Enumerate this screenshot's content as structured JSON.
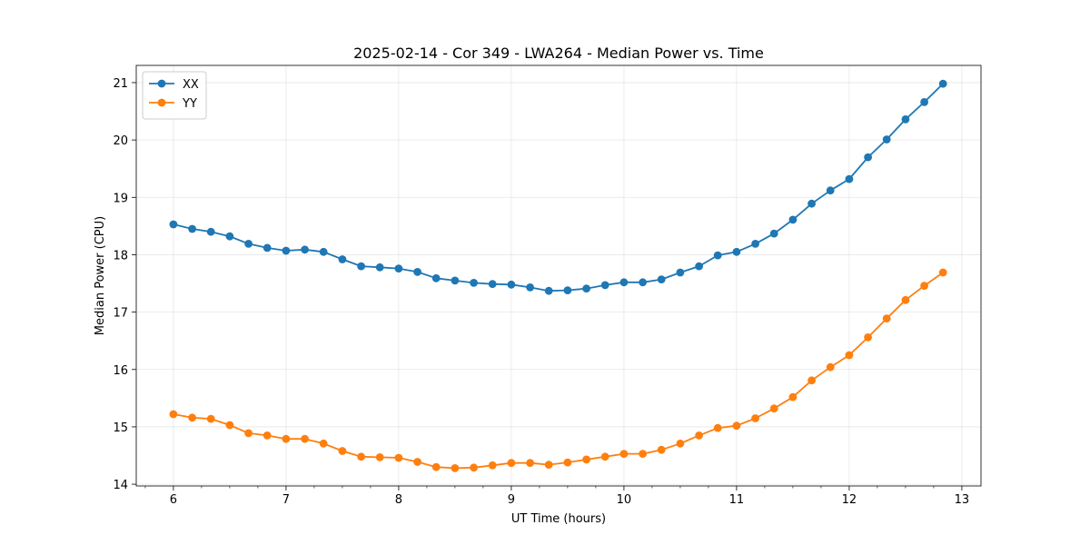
{
  "chart_data": {
    "type": "line",
    "title": "2025-02-14 - Cor 349 - LWA264 - Median Power vs. Time",
    "xlabel": "UT Time (hours)",
    "ylabel": "Median Power (CPU)",
    "xlim": [
      5.67,
      13.17
    ],
    "ylim": [
      13.97,
      21.3
    ],
    "xticks": [
      6,
      7,
      8,
      9,
      10,
      11,
      12,
      13
    ],
    "yticks": [
      14,
      15,
      16,
      17,
      18,
      19,
      20,
      21
    ],
    "grid": true,
    "legend_position": "top-left",
    "x": [
      6.0,
      6.167,
      6.333,
      6.5,
      6.667,
      6.833,
      7.0,
      7.167,
      7.333,
      7.5,
      7.667,
      7.833,
      8.0,
      8.167,
      8.333,
      8.5,
      8.667,
      8.833,
      9.0,
      9.167,
      9.333,
      9.5,
      9.667,
      9.833,
      10.0,
      10.167,
      10.333,
      10.5,
      10.667,
      10.833,
      11.0,
      11.167,
      11.333,
      11.5,
      11.667,
      11.833,
      12.0,
      12.167,
      12.333,
      12.5,
      12.667,
      12.833
    ],
    "series": [
      {
        "name": "XX",
        "color": "#1f77b4",
        "values": [
          18.53,
          18.45,
          18.4,
          18.32,
          18.19,
          18.12,
          18.07,
          18.09,
          18.05,
          17.92,
          17.8,
          17.78,
          17.76,
          17.7,
          17.59,
          17.55,
          17.51,
          17.49,
          17.48,
          17.43,
          17.37,
          17.38,
          17.41,
          17.47,
          17.52,
          17.52,
          17.57,
          17.69,
          17.8,
          17.99,
          18.05,
          18.19,
          18.37,
          18.61,
          18.89,
          19.12,
          19.32,
          19.7,
          20.01,
          20.36,
          20.66,
          20.98
        ]
      },
      {
        "name": "YY",
        "color": "#ff7f0e",
        "values": [
          15.22,
          15.16,
          15.14,
          15.03,
          14.89,
          14.85,
          14.79,
          14.79,
          14.71,
          14.58,
          14.48,
          14.47,
          14.46,
          14.39,
          14.3,
          14.28,
          14.29,
          14.33,
          14.37,
          14.37,
          14.34,
          14.38,
          14.43,
          14.48,
          14.53,
          14.53,
          14.6,
          14.71,
          14.85,
          14.98,
          15.02,
          15.15,
          15.32,
          15.52,
          15.81,
          16.04,
          16.25,
          16.56,
          16.89,
          17.21,
          17.46,
          17.69
        ]
      }
    ]
  }
}
